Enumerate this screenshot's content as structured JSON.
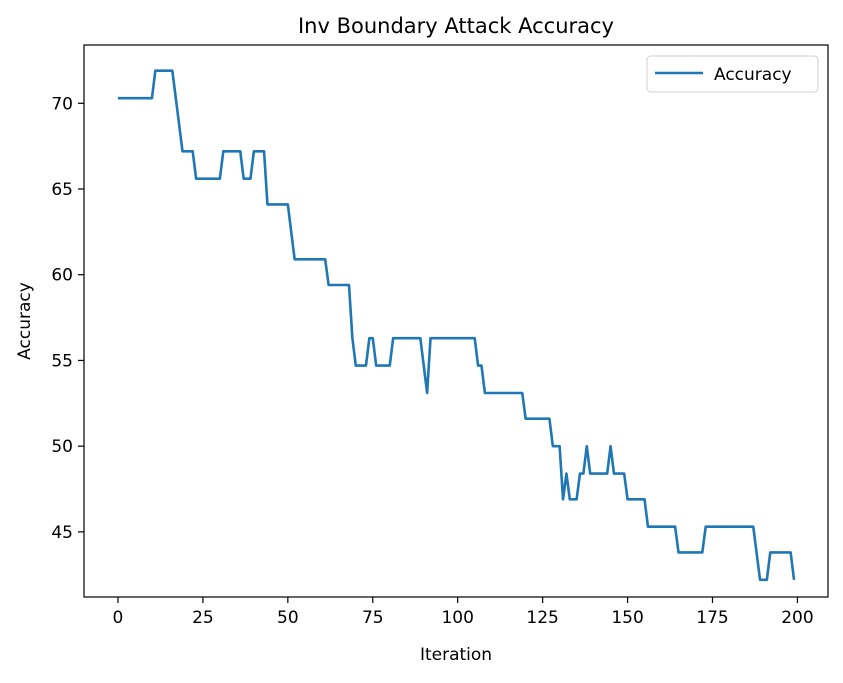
{
  "chart_data": {
    "type": "line",
    "title": "Inv Boundary Attack Accuracy",
    "xlabel": "Iteration",
    "ylabel": "Accuracy",
    "xlim": [
      -10,
      209
    ],
    "ylim": [
      41.2,
      73.4
    ],
    "xticks": [
      0,
      25,
      50,
      75,
      100,
      125,
      150,
      175,
      200
    ],
    "yticks": [
      45,
      50,
      55,
      60,
      65,
      70
    ],
    "grid": false,
    "legend_position": "top-right",
    "series": [
      {
        "name": "Accuracy",
        "color": "#1f77b4",
        "points": [
          [
            0,
            70.3
          ],
          [
            10,
            70.3
          ],
          [
            11,
            71.9
          ],
          [
            16,
            71.9
          ],
          [
            19,
            67.2
          ],
          [
            22,
            67.2
          ],
          [
            23,
            65.6
          ],
          [
            30,
            65.6
          ],
          [
            31,
            67.2
          ],
          [
            36,
            67.2
          ],
          [
            37,
            65.6
          ],
          [
            39,
            65.6
          ],
          [
            40,
            67.2
          ],
          [
            43,
            67.2
          ],
          [
            44,
            64.1
          ],
          [
            50,
            64.1
          ],
          [
            52,
            60.9
          ],
          [
            61,
            60.9
          ],
          [
            62,
            59.4
          ],
          [
            68,
            59.4
          ],
          [
            69,
            56.3
          ],
          [
            70,
            54.7
          ],
          [
            73,
            54.7
          ],
          [
            74,
            56.3
          ],
          [
            75,
            56.3
          ],
          [
            76,
            54.7
          ],
          [
            80,
            54.7
          ],
          [
            81,
            56.3
          ],
          [
            89,
            56.3
          ],
          [
            91,
            53.1
          ],
          [
            92,
            56.3
          ],
          [
            105,
            56.3
          ],
          [
            106,
            54.7
          ],
          [
            107,
            54.7
          ],
          [
            108,
            53.1
          ],
          [
            119,
            53.1
          ],
          [
            120,
            51.6
          ],
          [
            127,
            51.6
          ],
          [
            128,
            50.0
          ],
          [
            130,
            50.0
          ],
          [
            131,
            46.9
          ],
          [
            132,
            48.4
          ],
          [
            133,
            46.9
          ],
          [
            135,
            46.9
          ],
          [
            136,
            48.4
          ],
          [
            137,
            48.4
          ],
          [
            138,
            50.0
          ],
          [
            139,
            48.4
          ],
          [
            144,
            48.4
          ],
          [
            145,
            50.0
          ],
          [
            146,
            48.4
          ],
          [
            149,
            48.4
          ],
          [
            150,
            46.9
          ],
          [
            155,
            46.9
          ],
          [
            156,
            45.3
          ],
          [
            164,
            45.3
          ],
          [
            165,
            43.8
          ],
          [
            172,
            43.8
          ],
          [
            173,
            45.3
          ],
          [
            187,
            45.3
          ],
          [
            189,
            42.2
          ],
          [
            191,
            42.2
          ],
          [
            192,
            43.8
          ],
          [
            198,
            43.8
          ],
          [
            199,
            42.2
          ]
        ]
      }
    ]
  }
}
